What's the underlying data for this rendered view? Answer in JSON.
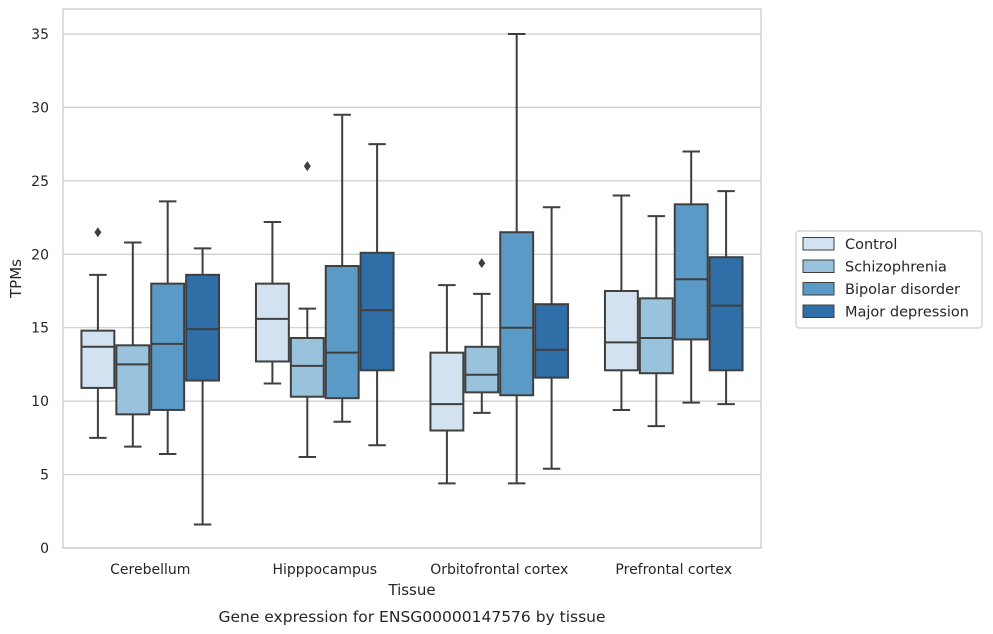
{
  "chart_data": {
    "type": "box",
    "caption": "Gene expression for ENSG00000147576 by tissue",
    "xlabel": "Tissue",
    "ylabel": "TPMs",
    "ylim": [
      0,
      36.7
    ],
    "yticks": [
      0,
      5,
      10,
      15,
      20,
      25,
      30,
      35
    ],
    "grid": "horizontal",
    "legend_position": "right",
    "categories": [
      "Cerebellum",
      "Hipppocampus",
      "Orbitofrontal cortex",
      "Prefrontal cortex"
    ],
    "series": [
      {
        "name": "Control",
        "color": "#d2e2f0",
        "boxes": [
          {
            "whislo": 7.5,
            "q1": 10.9,
            "med": 13.7,
            "q3": 14.8,
            "whishi": 18.6,
            "fliers": [
              21.5
            ]
          },
          {
            "whislo": 11.2,
            "q1": 12.7,
            "med": 15.6,
            "q3": 18.0,
            "whishi": 22.2,
            "fliers": []
          },
          {
            "whislo": 4.4,
            "q1": 8.0,
            "med": 9.8,
            "q3": 13.3,
            "whishi": 17.9,
            "fliers": []
          },
          {
            "whislo": 9.4,
            "q1": 12.1,
            "med": 14.0,
            "q3": 17.5,
            "whishi": 24.0,
            "fliers": []
          }
        ]
      },
      {
        "name": "Schizophrenia",
        "color": "#99c2dd",
        "boxes": [
          {
            "whislo": 6.9,
            "q1": 9.1,
            "med": 12.5,
            "q3": 13.8,
            "whishi": 20.8,
            "fliers": []
          },
          {
            "whislo": 6.2,
            "q1": 10.3,
            "med": 12.4,
            "q3": 14.3,
            "whishi": 16.3,
            "fliers": [
              26.0
            ]
          },
          {
            "whislo": 9.2,
            "q1": 10.6,
            "med": 11.8,
            "q3": 13.7,
            "whishi": 17.3,
            "fliers": [
              19.4
            ]
          },
          {
            "whislo": 8.3,
            "q1": 11.9,
            "med": 14.3,
            "q3": 17.0,
            "whishi": 22.6,
            "fliers": []
          }
        ]
      },
      {
        "name": "Bipolar disorder",
        "color": "#5b9ac6",
        "boxes": [
          {
            "whislo": 6.4,
            "q1": 9.4,
            "med": 13.9,
            "q3": 18.0,
            "whishi": 23.6,
            "fliers": []
          },
          {
            "whislo": 8.6,
            "q1": 10.2,
            "med": 13.3,
            "q3": 19.2,
            "whishi": 29.5,
            "fliers": []
          },
          {
            "whislo": 4.4,
            "q1": 10.4,
            "med": 15.0,
            "q3": 21.5,
            "whishi": 35.0,
            "fliers": []
          },
          {
            "whislo": 9.9,
            "q1": 14.2,
            "med": 18.3,
            "q3": 23.4,
            "whishi": 27.0,
            "fliers": []
          }
        ]
      },
      {
        "name": "Major depression",
        "color": "#2f6ea7",
        "boxes": [
          {
            "whislo": 1.6,
            "q1": 11.4,
            "med": 14.9,
            "q3": 18.6,
            "whishi": 20.4,
            "fliers": []
          },
          {
            "whislo": 7.0,
            "q1": 12.1,
            "med": 16.2,
            "q3": 20.1,
            "whishi": 27.5,
            "fliers": []
          },
          {
            "whislo": 5.4,
            "q1": 11.6,
            "med": 13.5,
            "q3": 16.6,
            "whishi": 23.2,
            "fliers": []
          },
          {
            "whislo": 9.8,
            "q1": 12.1,
            "med": 16.5,
            "q3": 19.8,
            "whishi": 24.3,
            "fliers": []
          }
        ]
      }
    ]
  }
}
